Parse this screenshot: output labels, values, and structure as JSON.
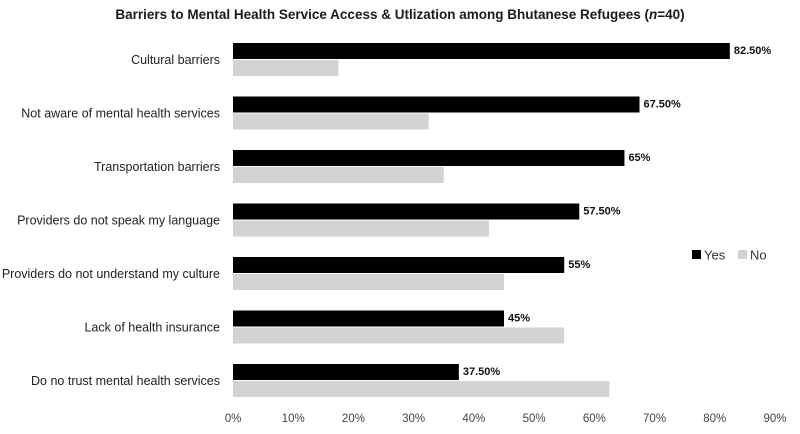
{
  "chart_data": {
    "type": "bar",
    "orientation": "horizontal",
    "title": "Barriers to Mental Health Service Access & Utlization among Bhutanese Refugees (",
    "title_n": "n",
    "title_suffix": "=40)",
    "categories": [
      "Cultural barriers",
      "Not aware of mental health services",
      "Transportation barriers",
      "Providers do not speak my language",
      "Providers do not understand my culture",
      "Lack of health insurance",
      "Do no trust mental health services"
    ],
    "series": [
      {
        "name": "Yes",
        "color": "#000000",
        "values": [
          82.5,
          67.5,
          65,
          57.5,
          55,
          45,
          37.5
        ],
        "labels": [
          "82.50%",
          "67.50%",
          "65%",
          "57.50%",
          "55%",
          "45%",
          "37.50%"
        ]
      },
      {
        "name": "No",
        "color": "#d3d3d3",
        "values": [
          17.5,
          32.5,
          35,
          42.5,
          45,
          55,
          62.5
        ]
      }
    ],
    "xlim": [
      0,
      90
    ],
    "xticks": [
      "0%",
      "10%",
      "20%",
      "30%",
      "40%",
      "50%",
      "60%",
      "70%",
      "80%",
      "90%"
    ],
    "grid": false,
    "legend_position": "right"
  }
}
